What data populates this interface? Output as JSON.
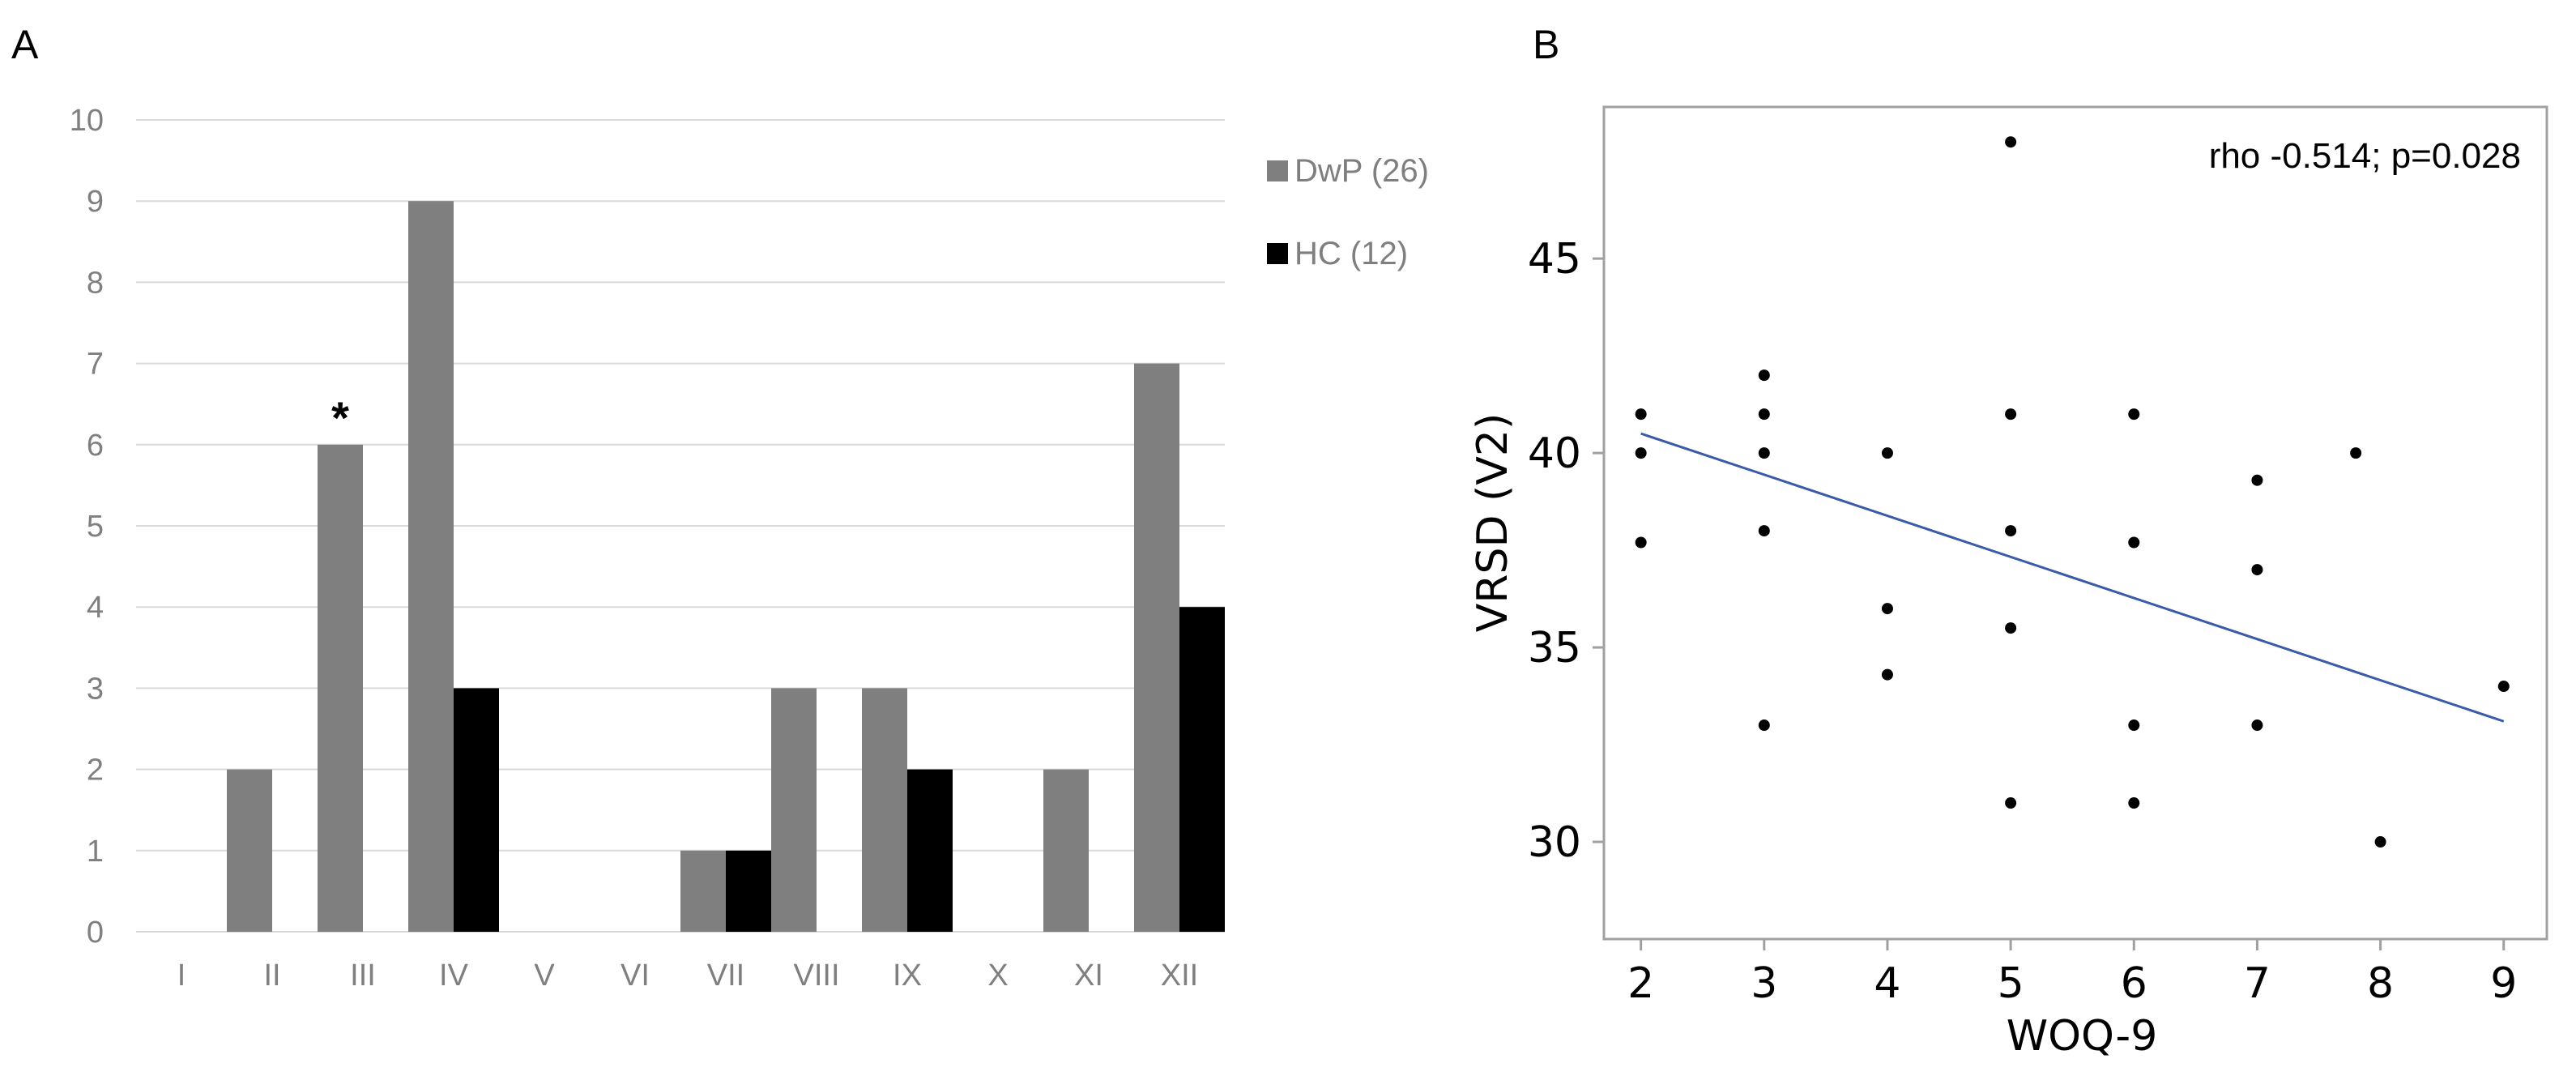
{
  "colors": {
    "dwp": "#7f7f7f",
    "hc": "#000000",
    "grid": "#d9d9d9",
    "regression": "#3a5ba8",
    "frame": "#a0a0a0",
    "axis_text": "#7f7f7f"
  },
  "chart_data": [
    {
      "panel": "A",
      "type": "bar",
      "categories": [
        "I",
        "II",
        "III",
        "IV",
        "V",
        "VI",
        "VII",
        "VIII",
        "IX",
        "X",
        "XI",
        "XII"
      ],
      "series": [
        {
          "name": "DwP (26)",
          "color": "#7f7f7f",
          "values": [
            0,
            2,
            6,
            9,
            0,
            0,
            1,
            3,
            3,
            0,
            2,
            7
          ]
        },
        {
          "name": "HC (12)",
          "color": "#000000",
          "values": [
            0,
            0,
            0,
            3,
            0,
            0,
            1,
            0,
            2,
            0,
            0,
            4
          ]
        }
      ],
      "ylim": [
        0,
        10
      ],
      "yticks": [
        0,
        1,
        2,
        3,
        4,
        5,
        6,
        7,
        8,
        9,
        10
      ],
      "grid": true,
      "legend": "right",
      "annotations": [
        {
          "text": "*",
          "category": "III",
          "series": "DwP (26)"
        }
      ]
    },
    {
      "panel": "B",
      "type": "scatter",
      "xlabel": "WOQ-9",
      "ylabel": "VRSD (V2)",
      "xlim": [
        1.7,
        9.35
      ],
      "ylim": [
        27.5,
        48.9
      ],
      "xticks": [
        2,
        3,
        4,
        5,
        6,
        7,
        8,
        9
      ],
      "yticks": [
        30,
        35,
        40,
        45
      ],
      "annotation": "rho -0.514; p=0.028",
      "points": [
        [
          2,
          41
        ],
        [
          2,
          40
        ],
        [
          2,
          37.7
        ],
        [
          3,
          42
        ],
        [
          3,
          41
        ],
        [
          3,
          40
        ],
        [
          3,
          38
        ],
        [
          3,
          33
        ],
        [
          4,
          40
        ],
        [
          4,
          36
        ],
        [
          4,
          34.3
        ],
        [
          5,
          48
        ],
        [
          5,
          41
        ],
        [
          5,
          38
        ],
        [
          5,
          35.5
        ],
        [
          5,
          31
        ],
        [
          6,
          41
        ],
        [
          6,
          37.7
        ],
        [
          6,
          33
        ],
        [
          6,
          31
        ],
        [
          7,
          39.3
        ],
        [
          7,
          37
        ],
        [
          7,
          33
        ],
        [
          7.8,
          40
        ],
        [
          8,
          30
        ],
        [
          9,
          34
        ]
      ],
      "regression": {
        "x": [
          2,
          9
        ],
        "y": [
          40.5,
          33.1
        ]
      }
    }
  ]
}
